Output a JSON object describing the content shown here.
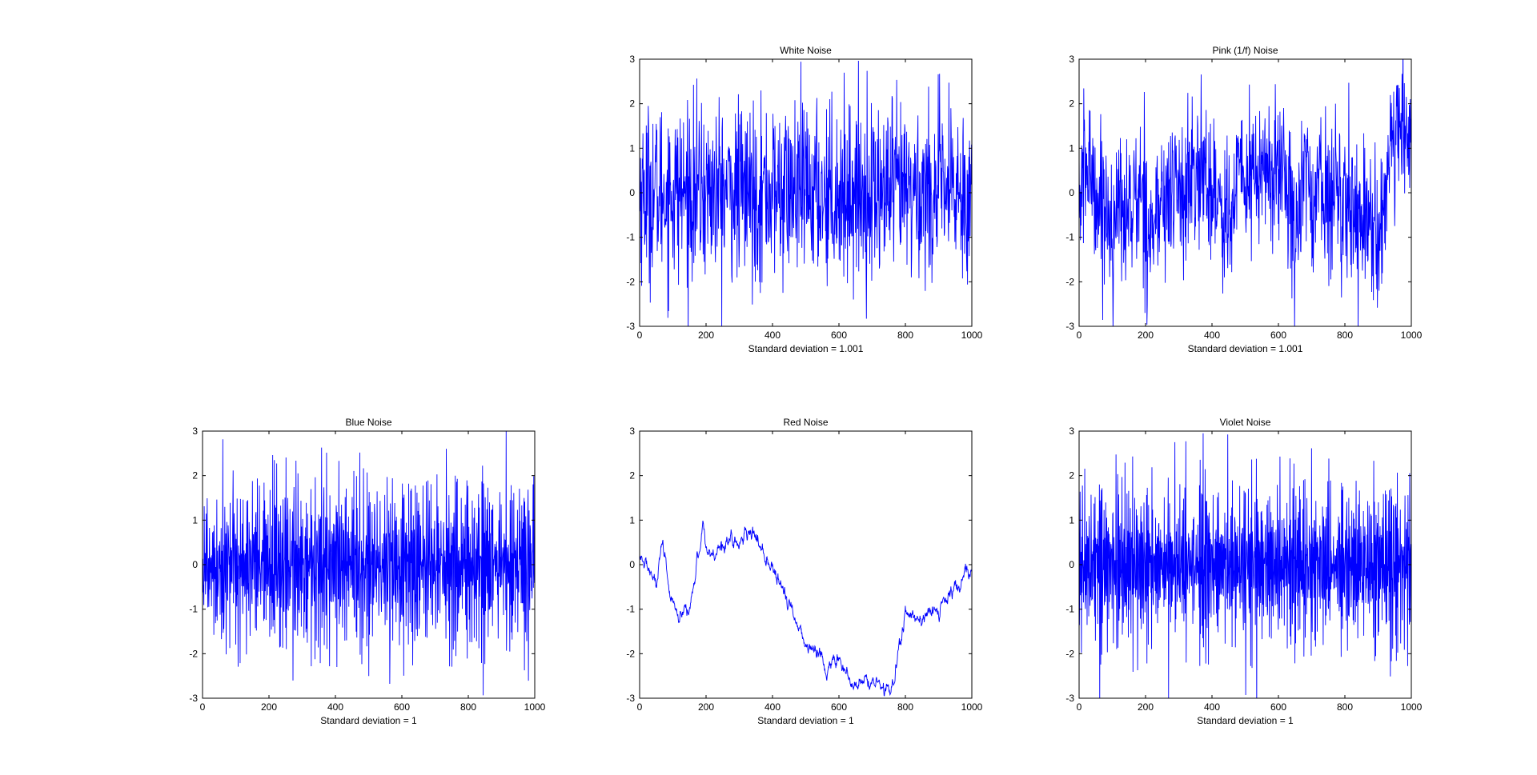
{
  "chart_data": [
    {
      "type": "line",
      "title": "White Noise",
      "xlabel": "Standard deviation = 1.001",
      "ylabel": "",
      "xlim": [
        0,
        1000
      ],
      "ylim": [
        -3,
        3
      ],
      "xticks": [
        0,
        200,
        400,
        600,
        800,
        1000
      ],
      "yticks": [
        -3,
        -2,
        -1,
        0,
        1,
        2,
        3
      ],
      "grid": false,
      "series": [
        {
          "color": "#0000ff",
          "kind": "white",
          "n_points": 1000,
          "std": 1.001
        }
      ]
    },
    {
      "type": "line",
      "title": "Pink (1/f) Noise",
      "xlabel": "Standard deviation = 1.001",
      "ylabel": "",
      "xlim": [
        0,
        1000
      ],
      "ylim": [
        -3,
        3
      ],
      "xticks": [
        0,
        200,
        400,
        600,
        800,
        1000
      ],
      "yticks": [
        -3,
        -2,
        -1,
        0,
        1,
        2,
        3
      ],
      "grid": false,
      "series": [
        {
          "color": "#0000ff",
          "kind": "pink",
          "n_points": 1000,
          "std": 1.001
        }
      ]
    },
    {
      "type": "line",
      "title": "Blue Noise",
      "xlabel": "Standard deviation = 1",
      "ylabel": "",
      "xlim": [
        0,
        1000
      ],
      "ylim": [
        -3,
        3
      ],
      "xticks": [
        0,
        200,
        400,
        600,
        800,
        1000
      ],
      "yticks": [
        -3,
        -2,
        -1,
        0,
        1,
        2,
        3
      ],
      "grid": false,
      "series": [
        {
          "color": "#0000ff",
          "kind": "blue",
          "n_points": 1000,
          "std": 1
        }
      ]
    },
    {
      "type": "line",
      "title": "Red Noise",
      "xlabel": "Standard deviation = 1",
      "ylabel": "",
      "xlim": [
        0,
        1000
      ],
      "ylim": [
        -3,
        3
      ],
      "xticks": [
        0,
        200,
        400,
        600,
        800,
        1000
      ],
      "yticks": [
        -3,
        -2,
        -1,
        0,
        1,
        2,
        3
      ],
      "grid": false,
      "series": [
        {
          "color": "#0000ff",
          "kind": "red",
          "n_points": 1000,
          "std": 1,
          "trend_x": [
            0,
            30,
            50,
            70,
            90,
            120,
            150,
            190,
            200,
            220,
            260,
            300,
            340,
            380,
            420,
            460,
            500,
            540,
            560,
            600,
            640,
            680,
            720,
            750,
            770,
            800,
            850,
            900,
            950,
            1000
          ],
          "trend_y": [
            0.1,
            -0.1,
            -0.5,
            0.4,
            -0.7,
            -1.3,
            -1.0,
            0.9,
            0.4,
            0.2,
            0.6,
            0.5,
            0.7,
            0.2,
            -0.5,
            -1.0,
            -1.8,
            -2.0,
            -2.3,
            -2.1,
            -2.8,
            -2.6,
            -2.7,
            -2.9,
            -2.3,
            -1.1,
            -1.2,
            -1.0,
            -0.6,
            -0.1
          ]
        }
      ]
    },
    {
      "type": "line",
      "title": "Violet Noise",
      "xlabel": "Standard deviation = 1",
      "ylabel": "",
      "xlim": [
        0,
        1000
      ],
      "ylim": [
        -3,
        3
      ],
      "xticks": [
        0,
        200,
        400,
        600,
        800,
        1000
      ],
      "yticks": [
        -3,
        -2,
        -1,
        0,
        1,
        2,
        3
      ],
      "grid": false,
      "series": [
        {
          "color": "#0000ff",
          "kind": "violet",
          "n_points": 1000,
          "std": 1
        }
      ]
    }
  ]
}
